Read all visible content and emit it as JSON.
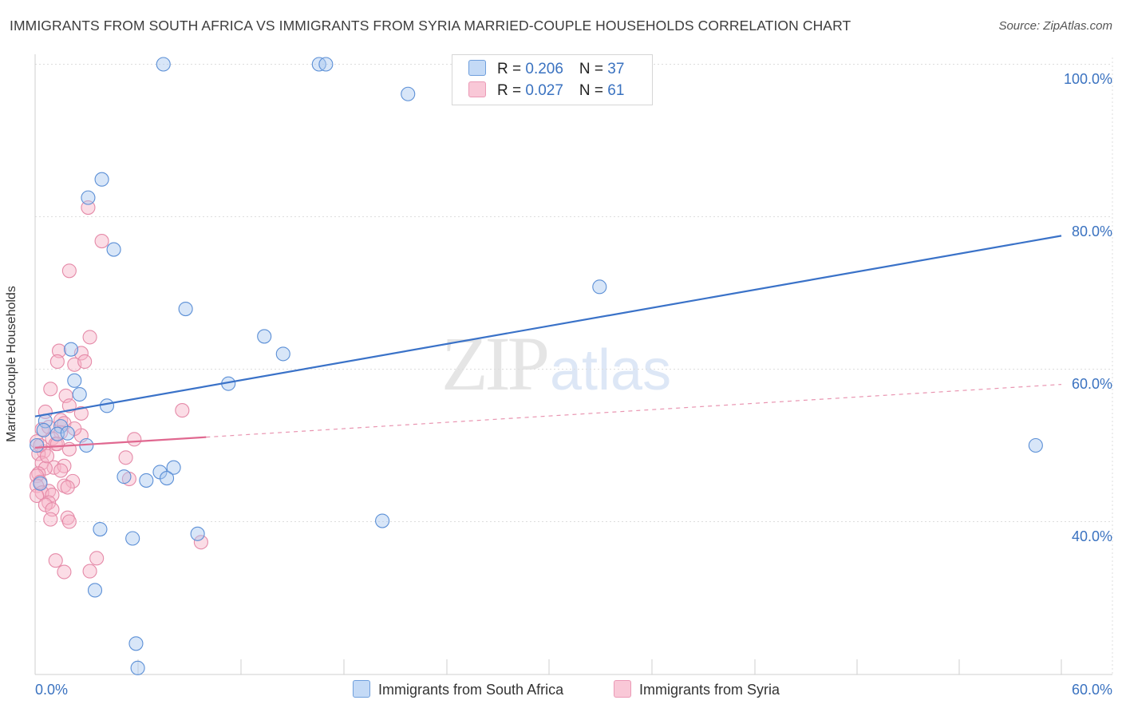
{
  "title": "IMMIGRANTS FROM SOUTH AFRICA VS IMMIGRANTS FROM SYRIA MARRIED-COUPLE HOUSEHOLDS CORRELATION CHART",
  "source": "Source: ZipAtlas.com",
  "watermark": {
    "zip": "ZIP",
    "atlas": "atlas"
  },
  "legend": {
    "south_africa": {
      "r_label": "R = ",
      "r_value": "0.206",
      "n_label": "N = ",
      "n_value": "37"
    },
    "syria": {
      "r_label": "R = ",
      "r_value": "0.027",
      "n_label": "N = ",
      "n_value": "61"
    }
  },
  "colors": {
    "south_africa_fill": "#a8c8f0",
    "south_africa_stroke": "#5b8fd6",
    "south_africa_line": "#3a72c8",
    "syria_fill": "#f6b4c8",
    "syria_stroke": "#e58aa8",
    "syria_line": "#e06890",
    "grid": "#dddddd",
    "tick": "#3a72c0"
  },
  "chart_data": {
    "type": "scatter",
    "title": "IMMIGRANTS FROM SOUTH AFRICA VS IMMIGRANTS FROM SYRIA MARRIED-COUPLE HOUSEHOLDS CORRELATION CHART",
    "xlabel": "",
    "ylabel": "Married-couple Households",
    "xlim": [
      0,
      60
    ],
    "ylim": [
      20,
      100
    ],
    "x_tick_labels": [
      "0.0%",
      "60.0%"
    ],
    "y_ticks": [
      40,
      60,
      80,
      100
    ],
    "y_tick_labels": [
      "40.0%",
      "60.0%",
      "80.0%",
      "100.0%"
    ],
    "legend_position": "top-center",
    "series": [
      {
        "name": "Immigrants from South Africa",
        "r": 0.206,
        "n": 37,
        "trend": {
          "x0": 0,
          "y0": 53.8,
          "x1": 60,
          "y1": 77.5,
          "dashed_from": null
        },
        "points": [
          [
            7.5,
            100
          ],
          [
            16.6,
            100
          ],
          [
            17.0,
            100
          ],
          [
            21.8,
            96.1
          ],
          [
            3.9,
            84.9
          ],
          [
            3.1,
            82.5
          ],
          [
            4.6,
            75.7
          ],
          [
            33.0,
            70.8
          ],
          [
            8.8,
            67.9
          ],
          [
            13.4,
            64.3
          ],
          [
            14.5,
            62.0
          ],
          [
            2.1,
            62.6
          ],
          [
            2.3,
            58.5
          ],
          [
            11.3,
            58.1
          ],
          [
            2.6,
            56.7
          ],
          [
            4.2,
            55.2
          ],
          [
            0.6,
            53.2
          ],
          [
            0.5,
            52.0
          ],
          [
            1.5,
            52.5
          ],
          [
            1.3,
            51.5
          ],
          [
            0.1,
            50.0
          ],
          [
            1.9,
            51.6
          ],
          [
            3.0,
            50.0
          ],
          [
            58.5,
            50.0
          ],
          [
            8.1,
            47.1
          ],
          [
            7.3,
            46.5
          ],
          [
            5.2,
            45.9
          ],
          [
            6.5,
            45.4
          ],
          [
            7.7,
            45.7
          ],
          [
            0.3,
            45.0
          ],
          [
            20.3,
            40.1
          ],
          [
            3.8,
            39.0
          ],
          [
            9.5,
            38.4
          ],
          [
            5.7,
            37.8
          ],
          [
            3.5,
            31.0
          ],
          [
            5.9,
            24.0
          ],
          [
            6.0,
            20.8
          ]
        ]
      },
      {
        "name": "Immigrants from Syria",
        "r": 0.027,
        "n": 61,
        "trend": {
          "x0": 0,
          "y0": 49.7,
          "x1": 60,
          "y1": 58.0,
          "solid_until_x": 10
        },
        "points": [
          [
            3.1,
            81.2
          ],
          [
            3.9,
            76.8
          ],
          [
            2.0,
            72.9
          ],
          [
            3.2,
            64.2
          ],
          [
            2.7,
            62.1
          ],
          [
            1.4,
            62.4
          ],
          [
            1.3,
            61.0
          ],
          [
            2.3,
            60.6
          ],
          [
            2.9,
            61.0
          ],
          [
            0.9,
            57.4
          ],
          [
            1.8,
            56.5
          ],
          [
            2.0,
            55.2
          ],
          [
            8.6,
            54.6
          ],
          [
            0.6,
            54.4
          ],
          [
            2.7,
            54.2
          ],
          [
            1.5,
            53.3
          ],
          [
            1.7,
            52.9
          ],
          [
            0.4,
            52.1
          ],
          [
            0.8,
            52.4
          ],
          [
            1.5,
            51.7
          ],
          [
            2.7,
            51.3
          ],
          [
            1.0,
            50.9
          ],
          [
            5.8,
            50.8
          ],
          [
            1.2,
            50.2
          ],
          [
            0.1,
            50.5
          ],
          [
            2.0,
            49.5
          ],
          [
            0.5,
            49.2
          ],
          [
            0.2,
            48.9
          ],
          [
            5.3,
            48.4
          ],
          [
            0.4,
            47.7
          ],
          [
            1.1,
            47.1
          ],
          [
            1.7,
            47.3
          ],
          [
            0.6,
            47.0
          ],
          [
            0.2,
            46.3
          ],
          [
            1.5,
            46.7
          ],
          [
            0.1,
            46.0
          ],
          [
            5.5,
            45.6
          ],
          [
            2.2,
            45.3
          ],
          [
            0.3,
            45.2
          ],
          [
            0.1,
            44.7
          ],
          [
            1.7,
            44.7
          ],
          [
            1.9,
            44.5
          ],
          [
            0.8,
            44.0
          ],
          [
            0.4,
            43.8
          ],
          [
            0.1,
            43.4
          ],
          [
            1.0,
            43.5
          ],
          [
            0.8,
            42.5
          ],
          [
            0.6,
            42.2
          ],
          [
            1.0,
            41.6
          ],
          [
            1.9,
            40.5
          ],
          [
            0.9,
            40.3
          ],
          [
            2.0,
            40.0
          ],
          [
            9.7,
            37.3
          ],
          [
            3.6,
            35.2
          ],
          [
            1.2,
            34.9
          ],
          [
            1.7,
            33.4
          ],
          [
            3.2,
            33.5
          ],
          [
            0.3,
            50.0
          ],
          [
            0.7,
            48.6
          ],
          [
            1.3,
            50.2
          ],
          [
            2.3,
            52.2
          ]
        ]
      }
    ]
  },
  "bottom_legend": {
    "south_africa": "Immigrants from South Africa",
    "syria": "Immigrants from Syria"
  }
}
